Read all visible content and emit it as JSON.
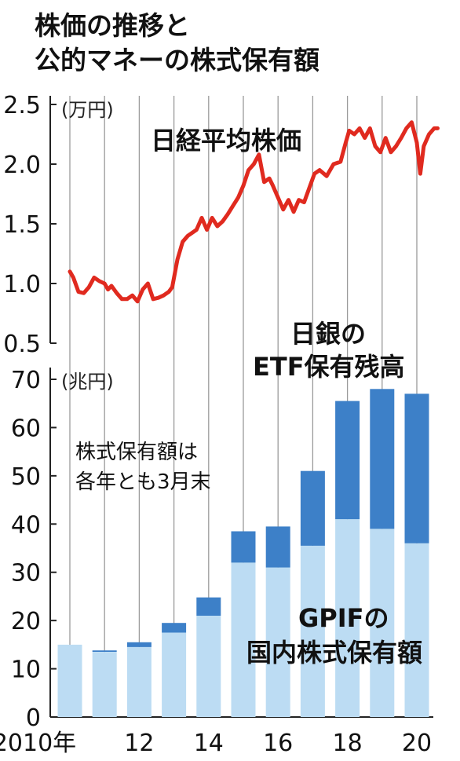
{
  "title_lines": [
    "株価の推移と",
    "公的マネーの株式保有額"
  ],
  "chart_data": [
    {
      "type": "line",
      "name_label": "日経平均株価",
      "unit_label": "(万円)",
      "ylim": [
        0.5,
        2.5
      ],
      "yticks": [
        "2.5",
        "2.0",
        "1.5",
        "1.0",
        "0.5"
      ],
      "ytick_values": [
        2.5,
        2.0,
        1.5,
        1.0,
        0.5
      ],
      "line_color": "#e02a1f",
      "x": [
        2010.0,
        2010.1,
        2010.25,
        2010.4,
        2010.55,
        2010.7,
        2010.85,
        2011.0,
        2011.1,
        2011.2,
        2011.35,
        2011.5,
        2011.65,
        2011.8,
        2011.95,
        2012.1,
        2012.25,
        2012.4,
        2012.55,
        2012.7,
        2012.85,
        2012.95,
        2013.1,
        2013.25,
        2013.4,
        2013.5,
        2013.65,
        2013.8,
        2013.95,
        2014.1,
        2014.25,
        2014.4,
        2014.55,
        2014.7,
        2014.85,
        2015.0,
        2015.15,
        2015.3,
        2015.45,
        2015.6,
        2015.75,
        2015.85,
        2016.0,
        2016.15,
        2016.3,
        2016.45,
        2016.6,
        2016.75,
        2016.9,
        2017.05,
        2017.2,
        2017.4,
        2017.6,
        2017.8,
        2017.95,
        2018.05,
        2018.2,
        2018.35,
        2018.5,
        2018.65,
        2018.8,
        2018.95,
        2019.1,
        2019.25,
        2019.4,
        2019.55,
        2019.7,
        2019.85,
        2020.0,
        2020.1,
        2020.2,
        2020.35,
        2020.5,
        2020.6
      ],
      "y": [
        1.1,
        1.05,
        0.93,
        0.92,
        0.97,
        1.05,
        1.02,
        1.0,
        0.95,
        0.98,
        0.92,
        0.87,
        0.87,
        0.9,
        0.85,
        0.95,
        1.0,
        0.87,
        0.88,
        0.9,
        0.93,
        0.97,
        1.2,
        1.35,
        1.4,
        1.42,
        1.45,
        1.55,
        1.45,
        1.55,
        1.48,
        1.52,
        1.58,
        1.65,
        1.72,
        1.82,
        1.95,
        2.0,
        2.08,
        1.85,
        1.88,
        1.82,
        1.72,
        1.62,
        1.7,
        1.6,
        1.7,
        1.68,
        1.8,
        1.92,
        1.95,
        1.9,
        2.0,
        2.02,
        2.18,
        2.28,
        2.25,
        2.3,
        2.22,
        2.3,
        2.15,
        2.1,
        2.22,
        2.1,
        2.15,
        2.22,
        2.3,
        2.35,
        2.18,
        1.92,
        2.15,
        2.25,
        2.3,
        2.3
      ]
    },
    {
      "type": "bar",
      "stacked": true,
      "unit_label": "(兆円)",
      "ylim": [
        0,
        70
      ],
      "yticks": [
        "70",
        "60",
        "50",
        "40",
        "30",
        "20",
        "10",
        "0"
      ],
      "ytick_values": [
        70,
        60,
        50,
        40,
        30,
        20,
        10,
        0
      ],
      "categories": [
        2010,
        2011,
        2012,
        2013,
        2014,
        2015,
        2016,
        2017,
        2018,
        2019,
        2020
      ],
      "x_tick_labels": [
        "2010年",
        "12",
        "14",
        "16",
        "18",
        "20"
      ],
      "x_tick_years": [
        2010,
        2012,
        2014,
        2016,
        2018,
        2020
      ],
      "series": [
        {
          "name": "GPIFの国内株式保有額",
          "color": "#bcdcf3",
          "values": [
            15,
            13.5,
            14.5,
            17.5,
            21,
            32,
            31,
            35.5,
            41,
            39,
            36
          ]
        },
        {
          "name": "日銀のETF保有残高",
          "color": "#3d80c8",
          "values": [
            0,
            0.3,
            1,
            2,
            3.8,
            6.5,
            8.5,
            15.5,
            24.5,
            29,
            31
          ]
        }
      ],
      "label_boj": [
        "日銀の",
        "ETF保有残高"
      ],
      "label_gpif": [
        "GPIFの",
        "国内株式保有額"
      ],
      "note": [
        "株式保有額は",
        "各年とも3月末"
      ]
    }
  ]
}
